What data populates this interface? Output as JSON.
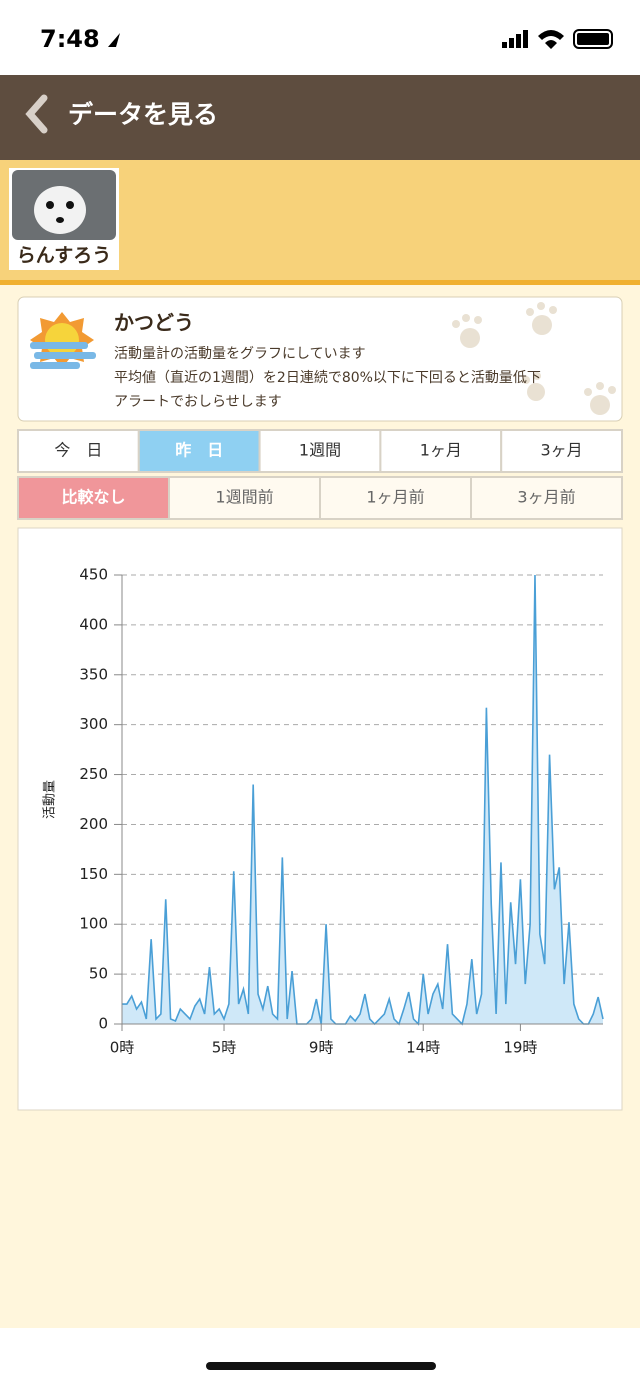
{
  "status_bar": {
    "time": "7:48"
  },
  "header": {
    "title": "データを見る"
  },
  "pet": {
    "name": "らんすろう"
  },
  "info_card": {
    "title": "かつどう",
    "lines": [
      "活動量計の活動量をグラフにしています",
      "平均値（直近の1週間）を2日連続で80%以下に下回ると活動量低下",
      "アラートでおしらせします"
    ]
  },
  "period_tabs": {
    "items": [
      "今　日",
      "昨　日",
      "1週間",
      "1ヶ月",
      "3ヶ月"
    ],
    "selected": 1
  },
  "compare_tabs": {
    "items": [
      "比較なし",
      "1週間前",
      "1ヶ月前",
      "3ヶ月前"
    ],
    "selected": 0
  },
  "chart_data": {
    "type": "area",
    "ylabel": "活動量",
    "color": "#4a9fd6",
    "fill": "#cfe8f8",
    "categories": [
      "0時",
      null,
      null,
      null,
      null,
      null,
      null,
      null,
      null,
      null,
      null,
      null,
      null,
      null,
      null,
      null,
      null,
      null,
      null,
      null,
      null,
      "5時",
      null,
      null,
      null,
      null,
      null,
      null,
      null,
      null,
      null,
      null,
      null,
      null,
      null,
      null,
      null,
      null,
      null,
      null,
      null,
      "9時",
      null,
      null,
      null,
      null,
      null,
      null,
      null,
      null,
      null,
      null,
      null,
      null,
      null,
      null,
      null,
      null,
      null,
      null,
      null,
      null,
      "14時",
      null,
      null,
      null,
      null,
      null,
      null,
      null,
      null,
      null,
      null,
      null,
      null,
      null,
      null,
      null,
      null,
      null,
      null,
      null,
      "19時",
      null,
      null,
      null,
      null,
      null,
      null,
      null,
      null,
      null,
      null,
      null,
      null,
      null,
      null,
      null,
      null,
      null
    ],
    "values": [
      20,
      20,
      28,
      15,
      22,
      5,
      85,
      5,
      10,
      125,
      5,
      3,
      15,
      10,
      5,
      18,
      25,
      10,
      57,
      10,
      15,
      5,
      20,
      153,
      20,
      35,
      10,
      240,
      30,
      15,
      38,
      10,
      5,
      167,
      5,
      53,
      0,
      0,
      0,
      5,
      25,
      0,
      100,
      5,
      0,
      0,
      0,
      8,
      3,
      10,
      30,
      5,
      0,
      5,
      10,
      25,
      5,
      0,
      15,
      32,
      5,
      0,
      50,
      10,
      30,
      40,
      15,
      80,
      10,
      5,
      0,
      20,
      65,
      10,
      30,
      317,
      120,
      10,
      162,
      20,
      122,
      60,
      145,
      40,
      100,
      450,
      90,
      60,
      270,
      135,
      157,
      40,
      102,
      20,
      5,
      0,
      0,
      10,
      27,
      5
    ],
    "ylim": [
      0,
      450
    ],
    "yticks": [
      0,
      50,
      100,
      150,
      200,
      250,
      300,
      350,
      400,
      450
    ],
    "grid": true
  }
}
